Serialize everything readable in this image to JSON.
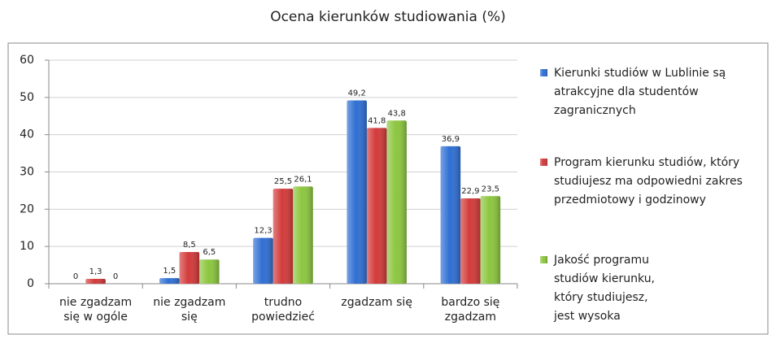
{
  "chart_data": {
    "type": "bar",
    "title": "Ocena kierunków studiowania (%)",
    "categories": [
      "nie zgadzam się w ogóle",
      "nie zgadzam się",
      "trudno powiedzieć",
      "zgadzam się",
      "bardzo się zgadzam"
    ],
    "series": [
      {
        "name": "Kierunki studiów w Lublinie są atrakcyjne dla studentów zagranicznych",
        "color": "#2f6fd3",
        "values": [
          0,
          1.5,
          12.3,
          49.2,
          36.9
        ],
        "value_labels": [
          "0",
          "1,5",
          "12,3",
          "49,2",
          "36,9"
        ]
      },
      {
        "name": "Program kierunku studiów, który studiujesz ma odpowiedni zakres przedmiotowy i godzinowy",
        "color": "#d33a3a",
        "values": [
          1.3,
          8.5,
          25.5,
          41.8,
          22.9
        ],
        "value_labels": [
          "1,3",
          "8,5",
          "25,5",
          "41,8",
          "22,9"
        ]
      },
      {
        "name": "Jakość programu studiów kierunku, który studiujesz, jest wysoka",
        "color": "#8cc63f",
        "values": [
          0,
          6.5,
          26.1,
          43.8,
          23.5
        ],
        "value_labels": [
          "0",
          "6,5",
          "26,1",
          "43,8",
          "23,5"
        ]
      }
    ],
    "ylim": [
      0,
      60
    ],
    "yticks": [
      0,
      10,
      20,
      30,
      40,
      50,
      60
    ],
    "grid": true,
    "legend": "right"
  }
}
